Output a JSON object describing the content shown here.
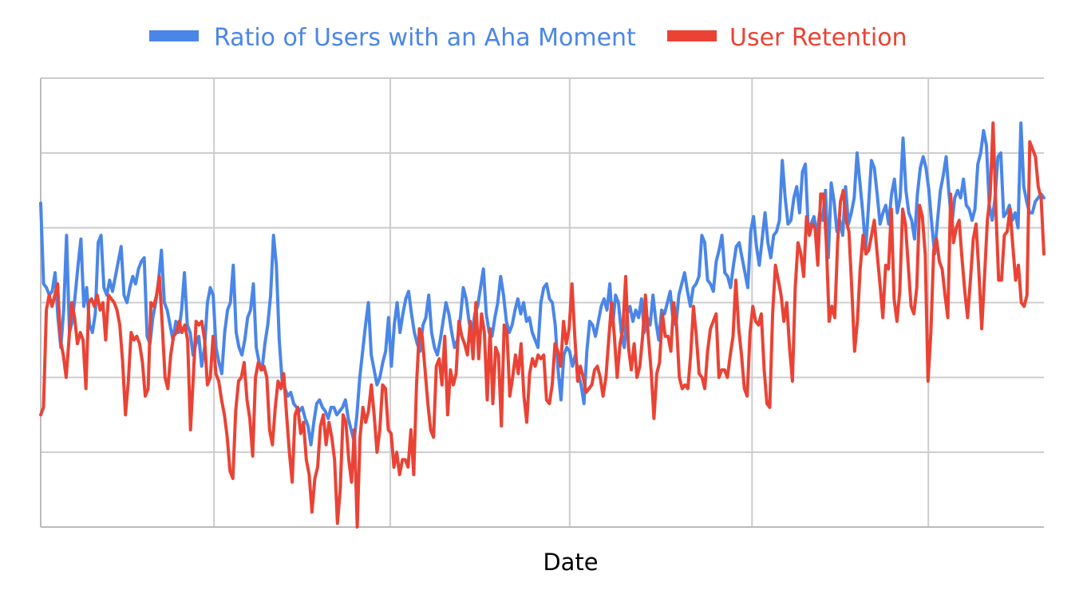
{
  "chart_data": {
    "type": "line",
    "title": "",
    "xlabel": "Date",
    "ylabel": "",
    "grid": true,
    "legend_position": "top",
    "colors": {
      "aha": "#4a86e8",
      "retention": "#ea4335",
      "grid": "#cccccc",
      "axis": "#bbbbbb"
    },
    "ylim": [
      0,
      6
    ],
    "x": {
      "type": "index",
      "start": 0,
      "end": 330,
      "vertical_gridlines_at": [
        57,
        115,
        174,
        234,
        292
      ]
    },
    "series": [
      {
        "name": "Ratio of Users with an Aha Moment",
        "values": [
          4.33,
          3.25,
          3.2,
          3.1,
          3.15,
          3.4,
          2.8,
          2.4,
          2.9,
          3.9,
          2.6,
          2.75,
          3.1,
          3.5,
          3.85,
          2.95,
          3.2,
          2.7,
          2.6,
          2.85,
          3.8,
          3.9,
          3.2,
          3.1,
          3.3,
          3.15,
          3.35,
          3.55,
          3.75,
          3.1,
          3.0,
          3.2,
          3.35,
          3.25,
          3.45,
          3.55,
          3.6,
          2.55,
          2.45,
          2.8,
          3.0,
          3.3,
          3.7,
          3.0,
          2.9,
          2.7,
          2.5,
          2.75,
          2.6,
          2.9,
          3.4,
          2.7,
          2.6,
          2.3,
          2.45,
          2.55,
          2.15,
          2.4,
          3.0,
          3.2,
          3.1,
          2.4,
          2.2,
          2.05,
          2.6,
          2.9,
          3.0,
          3.5,
          2.6,
          2.4,
          2.3,
          2.5,
          2.8,
          2.9,
          3.25,
          2.4,
          2.2,
          2.1,
          2.45,
          2.7,
          3.1,
          3.9,
          3.5,
          2.5,
          1.95,
          1.85,
          1.75,
          1.8,
          1.65,
          1.6,
          1.55,
          1.6,
          1.45,
          1.35,
          1.1,
          1.4,
          1.65,
          1.7,
          1.6,
          1.55,
          1.45,
          1.6,
          1.6,
          1.5,
          1.55,
          1.6,
          1.7,
          1.45,
          1.3,
          1.15,
          1.5,
          2.0,
          2.35,
          2.7,
          3.0,
          2.3,
          2.1,
          1.9,
          2.0,
          2.2,
          2.35,
          2.8,
          2.15,
          2.7,
          3.0,
          2.6,
          2.85,
          3.05,
          3.15,
          2.85,
          2.6,
          2.45,
          2.35,
          2.7,
          2.8,
          3.1,
          2.6,
          2.4,
          2.3,
          2.5,
          2.75,
          3.0,
          2.85,
          2.6,
          2.4,
          2.5,
          2.8,
          3.2,
          3.05,
          2.75,
          2.55,
          2.85,
          2.95,
          3.2,
          3.45,
          2.85,
          2.6,
          2.55,
          2.8,
          3.0,
          3.35,
          3.1,
          2.75,
          2.6,
          2.7,
          2.9,
          3.05,
          2.85,
          3.0,
          2.75,
          2.8,
          2.6,
          2.5,
          2.4,
          3.0,
          3.2,
          3.25,
          3.05,
          3.0,
          2.7,
          2.1,
          1.7,
          2.3,
          2.4,
          2.35,
          2.15,
          2.3,
          2.05,
          1.9,
          1.65,
          2.35,
          2.75,
          2.7,
          2.55,
          2.75,
          2.95,
          3.05,
          2.9,
          3.25,
          2.7,
          3.1,
          3.0,
          2.6,
          2.4,
          2.85,
          2.95,
          2.75,
          2.9,
          2.8,
          3.05,
          2.6,
          2.8,
          2.7,
          3.1,
          2.75,
          2.5,
          2.9,
          2.85,
          3.0,
          3.15,
          2.75,
          2.7,
          3.1,
          3.25,
          3.4,
          3.15,
          2.95,
          3.2,
          3.25,
          3.35,
          3.9,
          3.8,
          3.3,
          3.25,
          3.15,
          3.55,
          3.7,
          3.9,
          3.4,
          3.35,
          3.2,
          3.5,
          3.75,
          3.8,
          3.6,
          3.4,
          3.2,
          3.95,
          4.15,
          3.75,
          3.5,
          3.85,
          4.2,
          3.8,
          3.6,
          3.9,
          3.95,
          4.1,
          4.9,
          4.4,
          4.05,
          4.1,
          4.4,
          4.55,
          4.2,
          4.75,
          4.85,
          4.0,
          4.05,
          4.15,
          3.9,
          4.2,
          4.1,
          4.5,
          3.6,
          4.6,
          4.35,
          3.95,
          4.1,
          3.9,
          4.55,
          4.05,
          4.2,
          4.4,
          5.0,
          4.6,
          4.2,
          3.7,
          4.3,
          4.9,
          4.8,
          4.45,
          4.05,
          4.2,
          4.3,
          4.05,
          4.45,
          4.65,
          4.2,
          4.4,
          5.2,
          4.5,
          4.2,
          4.1,
          3.85,
          4.45,
          4.8,
          4.95,
          4.8,
          4.5,
          4.05,
          3.65,
          4.1,
          4.5,
          4.7,
          4.95,
          4.45,
          4.05,
          4.4,
          4.5,
          4.4,
          4.65,
          4.3,
          4.25,
          4.1,
          4.25,
          4.85,
          5.0,
          5.3,
          5.1,
          4.3,
          4.1,
          4.4,
          4.95,
          5.0,
          4.15,
          4.2,
          4.3,
          4.1,
          4.2,
          4.0,
          5.4,
          4.55,
          4.35,
          4.2,
          4.2,
          4.35,
          4.4,
          4.45,
          4.4
        ]
      },
      {
        "name": "User Retention",
        "values": [
          1.5,
          1.6,
          2.9,
          3.1,
          2.95,
          3.1,
          3.25,
          2.5,
          2.3,
          2.0,
          2.5,
          3.0,
          2.8,
          2.45,
          2.6,
          2.5,
          1.85,
          3.0,
          3.05,
          2.95,
          3.1,
          2.9,
          3.0,
          2.5,
          3.1,
          3.05,
          3.0,
          2.9,
          2.7,
          2.2,
          1.5,
          1.95,
          2.6,
          2.5,
          2.55,
          2.45,
          2.2,
          1.75,
          1.85,
          3.0,
          2.95,
          3.1,
          3.35,
          2.7,
          2.0,
          1.85,
          2.3,
          2.55,
          2.6,
          2.75,
          2.6,
          2.7,
          2.5,
          1.3,
          2.0,
          2.75,
          2.7,
          2.75,
          2.5,
          1.9,
          2.0,
          2.55,
          2.05,
          1.95,
          1.7,
          1.5,
          1.2,
          0.75,
          0.65,
          1.55,
          1.95,
          2.0,
          2.2,
          1.7,
          1.45,
          0.95,
          2.0,
          2.2,
          2.1,
          2.15,
          2.0,
          1.3,
          1.1,
          1.6,
          1.95,
          1.85,
          2.05,
          1.5,
          1.0,
          0.6,
          1.5,
          1.6,
          1.25,
          1.4,
          0.9,
          0.7,
          0.2,
          0.65,
          0.8,
          1.35,
          1.5,
          1.1,
          1.4,
          1.2,
          0.9,
          0.05,
          0.5,
          1.5,
          1.4,
          0.9,
          0.6,
          1.3,
          0.0,
          1.2,
          1.6,
          1.4,
          1.55,
          1.9,
          1.5,
          1.0,
          1.3,
          1.9,
          1.85,
          1.3,
          1.25,
          0.8,
          1.0,
          0.7,
          0.9,
          0.9,
          0.8,
          1.3,
          0.7,
          1.9,
          2.65,
          2.55,
          2.1,
          1.65,
          1.3,
          1.2,
          2.15,
          2.25,
          1.9,
          2.55,
          1.5,
          2.1,
          1.9,
          2.05,
          2.75,
          2.55,
          2.45,
          2.3,
          2.75,
          2.25,
          3.0,
          2.25,
          2.85,
          2.6,
          1.7,
          2.65,
          1.65,
          2.4,
          2.3,
          1.35,
          2.7,
          2.6,
          1.75,
          2.0,
          2.3,
          2.05,
          2.45,
          1.75,
          1.4,
          2.05,
          2.25,
          2.15,
          2.3,
          2.25,
          2.3,
          1.7,
          1.65,
          1.9,
          2.45,
          2.35,
          2.15,
          2.75,
          2.45,
          2.65,
          3.25,
          2.55,
          1.95,
          2.15,
          2.0,
          1.8,
          1.85,
          1.9,
          2.1,
          2.15,
          2.0,
          1.75,
          2.0,
          2.5,
          3.0,
          2.55,
          2.0,
          2.45,
          2.65,
          3.35,
          2.4,
          2.1,
          2.45,
          2.0,
          2.15,
          2.55,
          3.1,
          2.55,
          2.1,
          1.45,
          2.05,
          2.2,
          2.85,
          2.55,
          2.55,
          2.35,
          3.0,
          2.7,
          2.0,
          1.85,
          1.9,
          1.85,
          2.3,
          2.95,
          2.55,
          2.05,
          2.0,
          1.85,
          2.35,
          2.65,
          2.75,
          2.85,
          2.0,
          2.1,
          2.1,
          2.0,
          2.3,
          2.55,
          3.3,
          2.65,
          2.3,
          1.85,
          1.75,
          2.6,
          2.95,
          2.75,
          2.7,
          2.85,
          2.1,
          1.65,
          1.6,
          2.85,
          3.5,
          3.3,
          3.1,
          2.75,
          3.0,
          2.4,
          1.95,
          3.2,
          3.8,
          3.65,
          3.35,
          4.15,
          3.9,
          4.05,
          4.0,
          3.5,
          4.45,
          4.45,
          3.8,
          2.75,
          2.95,
          2.8,
          3.8,
          4.35,
          4.5,
          4.1,
          3.95,
          3.2,
          2.35,
          2.75,
          3.45,
          3.9,
          3.65,
          3.7,
          3.9,
          4.1,
          3.65,
          3.25,
          2.8,
          3.5,
          3.45,
          4.25,
          3.05,
          2.75,
          3.15,
          4.25,
          4.05,
          3.5,
          2.95,
          2.85,
          3.2,
          4.3,
          4.15,
          3.65,
          1.95,
          2.6,
          3.7,
          3.85,
          3.55,
          3.45,
          3.1,
          2.8,
          4.45,
          3.8,
          4.0,
          4.1,
          3.6,
          3.15,
          2.8,
          3.3,
          3.85,
          4.05,
          3.4,
          2.65,
          3.35,
          4.1,
          4.45,
          5.4,
          4.25,
          3.3,
          3.3,
          3.9,
          3.95,
          4.25,
          3.75,
          3.3,
          3.5,
          3.0,
          2.95,
          3.1,
          5.15,
          5.05,
          4.95,
          4.55,
          4.4,
          3.65
        ]
      }
    ]
  }
}
